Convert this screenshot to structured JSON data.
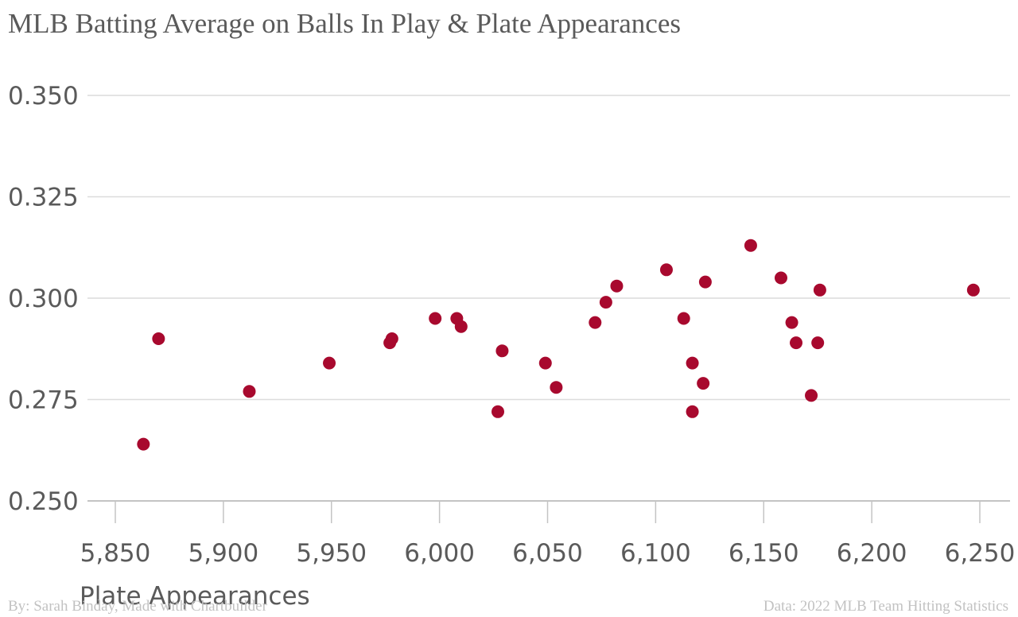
{
  "chart_data": {
    "type": "scatter",
    "title": "MLB Batting Average on Balls In Play & Plate Appearances",
    "xlabel": "Plate Appearances",
    "ylabel": "",
    "xlim": [
      5830,
      6260
    ],
    "ylim": [
      0.25,
      0.355
    ],
    "xticks": [
      5850,
      5900,
      5950,
      6000,
      6050,
      6100,
      6150,
      6200,
      6250
    ],
    "xtick_labels": [
      "5,850",
      "5,900",
      "5,950",
      "6,000",
      "6,050",
      "6,100",
      "6,150",
      "6,200",
      "6,250"
    ],
    "yticks": [
      0.25,
      0.275,
      0.3,
      0.325,
      0.35
    ],
    "ytick_labels": [
      "0.250",
      "0.275",
      "0.300",
      "0.325",
      "0.350"
    ],
    "grid": true,
    "point_color": "#a8092e",
    "points": [
      {
        "x": 5863,
        "y": 0.264
      },
      {
        "x": 5870,
        "y": 0.29
      },
      {
        "x": 5912,
        "y": 0.277
      },
      {
        "x": 5949,
        "y": 0.284
      },
      {
        "x": 5977,
        "y": 0.289
      },
      {
        "x": 5978,
        "y": 0.29
      },
      {
        "x": 5998,
        "y": 0.295
      },
      {
        "x": 6008,
        "y": 0.295
      },
      {
        "x": 6010,
        "y": 0.293
      },
      {
        "x": 6027,
        "y": 0.272
      },
      {
        "x": 6029,
        "y": 0.287
      },
      {
        "x": 6049,
        "y": 0.284
      },
      {
        "x": 6054,
        "y": 0.278
      },
      {
        "x": 6072,
        "y": 0.294
      },
      {
        "x": 6077,
        "y": 0.299
      },
      {
        "x": 6082,
        "y": 0.303
      },
      {
        "x": 6105,
        "y": 0.307
      },
      {
        "x": 6113,
        "y": 0.295
      },
      {
        "x": 6117,
        "y": 0.284
      },
      {
        "x": 6117,
        "y": 0.272
      },
      {
        "x": 6122,
        "y": 0.279
      },
      {
        "x": 6123,
        "y": 0.304
      },
      {
        "x": 6144,
        "y": 0.313
      },
      {
        "x": 6158,
        "y": 0.305
      },
      {
        "x": 6163,
        "y": 0.294
      },
      {
        "x": 6165,
        "y": 0.289
      },
      {
        "x": 6172,
        "y": 0.276
      },
      {
        "x": 6175,
        "y": 0.289
      },
      {
        "x": 6176,
        "y": 0.302
      },
      {
        "x": 6247,
        "y": 0.302
      }
    ]
  },
  "footer": {
    "credit": "By: Sarah Binday, Made with Chartbuilder",
    "source": "Data: 2022 MLB Team Hitting Statistics"
  }
}
